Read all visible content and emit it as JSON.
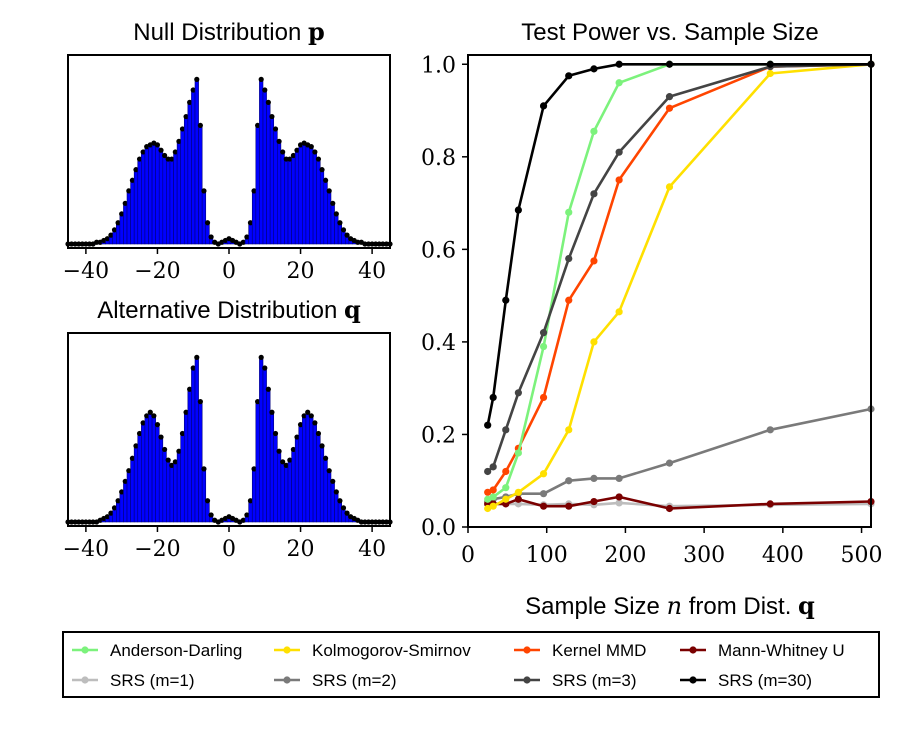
{
  "chart_data": [
    {
      "type": "bar",
      "title": "Null Distribution",
      "title_symbol": "p",
      "xlim": [
        -45,
        45
      ],
      "xticks": [
        -40,
        -20,
        0,
        20,
        40
      ],
      "xtick_labels": [
        "−40",
        "−20",
        "0",
        "20",
        "40"
      ],
      "x": [
        -45,
        -44,
        -43,
        -42,
        -41,
        -40,
        -39,
        -38,
        -37,
        -36,
        -35,
        -34,
        -33,
        -32,
        -31,
        -30,
        -29,
        -28,
        -27,
        -26,
        -25,
        -24,
        -23,
        -22,
        -21,
        -20,
        -19,
        -18,
        -17,
        -16,
        -15,
        -14,
        -13,
        -12,
        -11,
        -10,
        -9,
        -8,
        -7,
        -6,
        -5,
        -4,
        -3,
        -2,
        -1,
        0,
        1,
        2,
        3,
        4,
        5,
        6,
        7,
        8,
        9,
        10,
        11,
        12,
        13,
        14,
        15,
        16,
        17,
        18,
        19,
        20,
        21,
        22,
        23,
        24,
        25,
        26,
        27,
        28,
        29,
        30,
        31,
        32,
        33,
        34,
        35,
        36,
        37,
        38,
        39,
        40,
        41,
        42,
        43,
        44,
        45
      ],
      "values": [
        0,
        0,
        0,
        0,
        0,
        0,
        0,
        0,
        0.01,
        0.01,
        0.02,
        0.03,
        0.05,
        0.08,
        0.12,
        0.17,
        0.23,
        0.3,
        0.36,
        0.42,
        0.48,
        0.52,
        0.55,
        0.56,
        0.57,
        0.56,
        0.53,
        0.5,
        0.48,
        0.48,
        0.52,
        0.58,
        0.65,
        0.72,
        0.8,
        0.87,
        0.93,
        0.67,
        0.3,
        0.12,
        0.04,
        0.01,
        0,
        0.01,
        0.02,
        0.03,
        0.02,
        0.01,
        0,
        0.01,
        0.04,
        0.12,
        0.3,
        0.67,
        0.93,
        0.87,
        0.8,
        0.72,
        0.65,
        0.58,
        0.52,
        0.48,
        0.48,
        0.5,
        0.53,
        0.56,
        0.57,
        0.56,
        0.55,
        0.52,
        0.48,
        0.42,
        0.36,
        0.3,
        0.23,
        0.17,
        0.12,
        0.08,
        0.05,
        0.03,
        0.02,
        0.01,
        0.01,
        0,
        0,
        0,
        0,
        0,
        0,
        0,
        0
      ]
    },
    {
      "type": "bar",
      "title": "Alternative Distribution",
      "title_symbol": "q",
      "xlim": [
        -45,
        45
      ],
      "xticks": [
        -40,
        -20,
        0,
        20,
        40
      ],
      "xtick_labels": [
        "−40",
        "−20",
        "0",
        "20",
        "40"
      ],
      "x": [
        -45,
        -44,
        -43,
        -42,
        -41,
        -40,
        -39,
        -38,
        -37,
        -36,
        -35,
        -34,
        -33,
        -32,
        -31,
        -30,
        -29,
        -28,
        -27,
        -26,
        -25,
        -24,
        -23,
        -22,
        -21,
        -20,
        -19,
        -18,
        -17,
        -16,
        -15,
        -14,
        -13,
        -12,
        -11,
        -10,
        -9,
        -8,
        -7,
        -6,
        -5,
        -4,
        -3,
        -2,
        -1,
        0,
        1,
        2,
        3,
        4,
        5,
        6,
        7,
        8,
        9,
        10,
        11,
        12,
        13,
        14,
        15,
        16,
        17,
        18,
        19,
        20,
        21,
        22,
        23,
        24,
        25,
        26,
        27,
        28,
        29,
        30,
        31,
        32,
        33,
        34,
        35,
        36,
        37,
        38,
        39,
        40,
        41,
        42,
        43,
        44,
        45
      ],
      "values": [
        0,
        0,
        0,
        0,
        0,
        0,
        0,
        0,
        0,
        0.01,
        0.02,
        0.03,
        0.05,
        0.08,
        0.12,
        0.17,
        0.23,
        0.29,
        0.36,
        0.43,
        0.5,
        0.56,
        0.6,
        0.62,
        0.6,
        0.55,
        0.48,
        0.41,
        0.35,
        0.32,
        0.34,
        0.4,
        0.5,
        0.62,
        0.75,
        0.87,
        0.93,
        0.68,
        0.3,
        0.12,
        0.04,
        0.01,
        0,
        0.01,
        0.02,
        0.03,
        0.02,
        0.01,
        0,
        0.01,
        0.04,
        0.12,
        0.3,
        0.68,
        0.93,
        0.87,
        0.75,
        0.62,
        0.5,
        0.4,
        0.34,
        0.32,
        0.35,
        0.41,
        0.48,
        0.55,
        0.6,
        0.62,
        0.6,
        0.56,
        0.5,
        0.43,
        0.36,
        0.29,
        0.23,
        0.17,
        0.12,
        0.08,
        0.05,
        0.03,
        0.02,
        0.01,
        0,
        0,
        0,
        0,
        0,
        0,
        0,
        0,
        0
      ]
    },
    {
      "type": "line",
      "title": "Test Power vs. Sample Size",
      "xlabel": "Sample Size",
      "xlabel_var": "n",
      "xlabel_suffix": "from Dist.",
      "xlabel_symbol": "q",
      "ylabel": "",
      "xlim": [
        0,
        512
      ],
      "ylim": [
        0,
        1.02
      ],
      "xticks": [
        0,
        100,
        200,
        300,
        400,
        500
      ],
      "xtick_labels": [
        "0",
        "100",
        "200",
        "300",
        "400",
        "500"
      ],
      "yticks": [
        0,
        0.2,
        0.4,
        0.6,
        0.8,
        1.0
      ],
      "ytick_labels": [
        "0.0",
        "0.2",
        "0.4",
        "0.6",
        "0.8",
        "1.0"
      ],
      "legend_position": "bottom",
      "x": [
        25,
        32,
        48,
        64,
        96,
        128,
        160,
        192,
        256,
        384,
        512
      ],
      "series": [
        {
          "name": "SRS (m=1)",
          "color": "#bdbdbd",
          "values": [
            0.05,
            0.05,
            0.05,
            0.05,
            0.048,
            0.05,
            0.048,
            0.052,
            0.045,
            0.048,
            0.05
          ]
        },
        {
          "name": "SRS (m=2)",
          "color": "#7a7a7a",
          "values": [
            0.055,
            0.06,
            0.065,
            0.072,
            0.072,
            0.1,
            0.105,
            0.105,
            0.138,
            0.21,
            0.255
          ]
        },
        {
          "name": "Mann-Whitney U",
          "color": "#7a0000",
          "values": [
            0.05,
            0.05,
            0.05,
            0.06,
            0.045,
            0.045,
            0.055,
            0.065,
            0.04,
            0.05,
            0.055
          ]
        },
        {
          "name": "Kolmogorov-Smirnov",
          "color": "#ffe000",
          "values": [
            0.04,
            0.045,
            0.06,
            0.075,
            0.115,
            0.21,
            0.4,
            0.465,
            0.735,
            0.98,
            1.0
          ]
        },
        {
          "name": "Kernel MMD",
          "color": "#ff4500",
          "values": [
            0.075,
            0.08,
            0.12,
            0.17,
            0.28,
            0.49,
            0.575,
            0.75,
            0.905,
            0.995,
            1.0
          ]
        },
        {
          "name": "Anderson-Darling",
          "color": "#7cf27c",
          "values": [
            0.06,
            0.065,
            0.085,
            0.16,
            0.39,
            0.68,
            0.855,
            0.96,
            1.0,
            1.0,
            1.0
          ]
        },
        {
          "name": "SRS (m=3)",
          "color": "#444444",
          "values": [
            0.12,
            0.13,
            0.21,
            0.29,
            0.42,
            0.58,
            0.72,
            0.81,
            0.93,
            0.995,
            1.0
          ]
        },
        {
          "name": "SRS (m=30)",
          "color": "#000000",
          "values": [
            0.22,
            0.28,
            0.49,
            0.685,
            0.91,
            0.975,
            0.99,
            1.0,
            1.0,
            1.0,
            1.0
          ]
        }
      ],
      "legend_order": [
        "Anderson-Darling",
        "Kolmogorov-Smirnov",
        "Kernel MMD",
        "Mann-Whitney U",
        "SRS (m=1)",
        "SRS (m=2)",
        "SRS (m=3)",
        "SRS (m=30)"
      ]
    }
  ],
  "colors": {
    "bar_fill": "#0000ff",
    "bar_edge": "#00007a",
    "marker": "#000000"
  }
}
